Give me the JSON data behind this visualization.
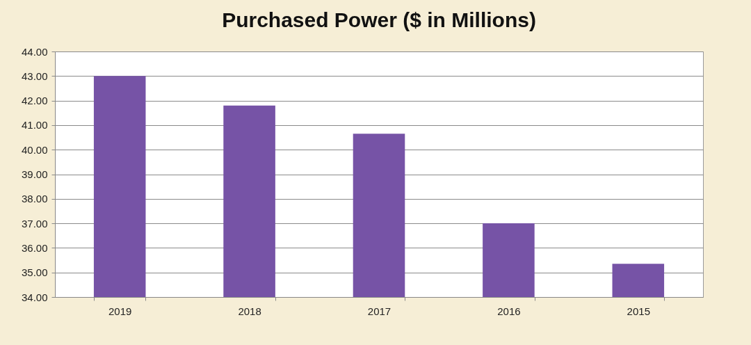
{
  "chart_data": {
    "type": "bar",
    "title": "Purchased Power ($ in Millions)",
    "categories": [
      "2019",
      "2018",
      "2017",
      "2016",
      "2015"
    ],
    "values": [
      43.0,
      41.8,
      40.65,
      37.0,
      35.35
    ],
    "color": "#7653a6",
    "ylim": [
      34,
      44
    ],
    "yticks": [
      {
        "value": 34,
        "label": "34.00"
      },
      {
        "value": 35,
        "label": "35.00"
      },
      {
        "value": 36,
        "label": "36.00"
      },
      {
        "value": 37,
        "label": "37.00"
      },
      {
        "value": 38,
        "label": "38.00"
      },
      {
        "value": 39,
        "label": "39.00"
      },
      {
        "value": 40,
        "label": "40.00"
      },
      {
        "value": 41,
        "label": "41.00"
      },
      {
        "value": 42,
        "label": "42.00"
      },
      {
        "value": 43,
        "label": "43.00"
      },
      {
        "value": 44,
        "label": "44.00"
      }
    ],
    "grid": "y"
  }
}
